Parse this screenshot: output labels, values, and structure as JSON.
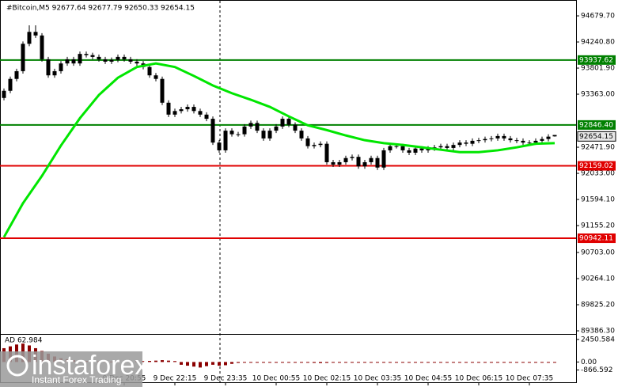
{
  "chart_data": {
    "type": "candlestick",
    "title": "#Bitcoin,M5  92677.64 92677.79 92650.33 92654.15",
    "candles": {
      "open": [
        93300,
        93420,
        93620,
        93750,
        94210,
        94410,
        94350,
        93950,
        93680,
        93750,
        93880,
        93950,
        93880,
        94040,
        94020,
        93990,
        93950,
        93910,
        93940,
        93990,
        93950,
        93910,
        93880,
        93820,
        93680,
        93620,
        93220,
        93020,
        93080,
        93110,
        93150,
        93080,
        93020,
        92950,
        92550,
        92420,
        92750,
        92690,
        92690,
        92820,
        92880,
        92750,
        92620,
        92750,
        92820,
        92950,
        92850,
        92750,
        92620,
        92490,
        92510,
        92530,
        92220,
        92180,
        92220,
        92290,
        92310,
        92150,
        92220,
        92290,
        92130,
        92420,
        92490,
        92490,
        92420,
        92380,
        92450,
        92420,
        92450,
        92470,
        92490,
        92460,
        92510,
        92550,
        92530,
        92580,
        92590,
        92610,
        92620,
        92660,
        92620,
        92590,
        92580,
        92550,
        92550,
        92580,
        92610,
        92677.64
      ],
      "high": [
        93460,
        93660,
        93790,
        94250,
        94520,
        94520,
        94390,
        93990,
        93790,
        93920,
        93990,
        93990,
        94080,
        94080,
        94060,
        94030,
        93990,
        93980,
        94030,
        94030,
        93990,
        93950,
        93920,
        93860,
        93720,
        93660,
        93260,
        93120,
        93150,
        93190,
        93190,
        93120,
        93060,
        92990,
        92590,
        92790,
        92790,
        92730,
        92860,
        92920,
        92920,
        92790,
        92790,
        92860,
        92990,
        92990,
        92890,
        92790,
        92660,
        92550,
        92570,
        92570,
        92260,
        92260,
        92330,
        92350,
        92350,
        92260,
        92330,
        92330,
        92460,
        92530,
        92530,
        92530,
        92460,
        92490,
        92490,
        92490,
        92510,
        92530,
        92530,
        92550,
        92590,
        92590,
        92620,
        92630,
        92650,
        92660,
        92700,
        92700,
        92660,
        92630,
        92620,
        92590,
        92620,
        92650,
        92690,
        92677.79
      ],
      "low": [
        93260,
        93380,
        93580,
        93710,
        94170,
        94310,
        93910,
        93640,
        93640,
        93710,
        93840,
        93840,
        93840,
        93980,
        93950,
        93910,
        93870,
        93870,
        93900,
        93910,
        93870,
        93840,
        93780,
        93640,
        93580,
        93180,
        92980,
        92980,
        93040,
        93070,
        93040,
        92980,
        92910,
        92510,
        92380,
        92380,
        92650,
        92650,
        92650,
        92780,
        92710,
        92580,
        92580,
        92710,
        92780,
        92810,
        92710,
        92580,
        92450,
        92450,
        92470,
        92180,
        92140,
        92140,
        92180,
        92250,
        92110,
        92110,
        92180,
        92090,
        92090,
        92380,
        92450,
        92380,
        92340,
        92340,
        92380,
        92380,
        92410,
        92430,
        92420,
        92420,
        92470,
        92490,
        92490,
        92540,
        92550,
        92570,
        92580,
        92580,
        92550,
        92540,
        92510,
        92510,
        92510,
        92540,
        92570,
        92650.33
      ],
      "close": [
        93420,
        93620,
        93750,
        94210,
        94410,
        94350,
        93950,
        93680,
        93750,
        93880,
        93950,
        93880,
        94040,
        94020,
        93990,
        93950,
        93910,
        93940,
        93990,
        93950,
        93910,
        93880,
        93820,
        93680,
        93620,
        93220,
        93020,
        93080,
        93110,
        93150,
        93080,
        93020,
        92950,
        92550,
        92420,
        92750,
        92690,
        92690,
        92820,
        92880,
        92750,
        92620,
        92750,
        92820,
        92950,
        92850,
        92750,
        92620,
        92490,
        92510,
        92530,
        92220,
        92180,
        92220,
        92290,
        92310,
        92150,
        92220,
        92290,
        92130,
        92420,
        92490,
        92490,
        92420,
        92380,
        92450,
        92420,
        92450,
        92470,
        92490,
        92460,
        92510,
        92550,
        92530,
        92580,
        92590,
        92610,
        92620,
        92660,
        92620,
        92590,
        92580,
        92550,
        92550,
        92580,
        92610,
        92650,
        92654.15
      ],
      "color": "#000000"
    },
    "ma": {
      "color": "#00e600",
      "x": [
        0,
        3,
        6,
        9,
        12,
        15,
        18,
        21,
        24,
        27,
        30,
        33,
        36,
        39,
        42,
        45,
        48,
        51,
        54,
        57,
        60,
        63,
        66,
        69,
        72,
        75,
        78,
        81,
        84,
        87
      ],
      "values": [
        90960,
        91530,
        91990,
        92500,
        92960,
        93350,
        93640,
        93820,
        93880,
        93820,
        93670,
        93510,
        93380,
        93270,
        93150,
        92990,
        92840,
        92760,
        92670,
        92590,
        92540,
        92510,
        92470,
        92430,
        92390,
        92390,
        92420,
        92470,
        92530,
        92540
      ]
    },
    "levels": [
      {
        "value": 93937.62,
        "color": "#008000"
      },
      {
        "value": 92846.4,
        "label": "92846.40",
        "color": "#008000"
      },
      {
        "value": 92159.02,
        "color": "#e00000"
      },
      {
        "value": 90942.11,
        "color": "#e00000"
      }
    ],
    "ylim": [
      89360,
      94893
    ],
    "yticks": [
      {
        "value": 94679.7,
        "label": "94679.70"
      },
      {
        "value": 94240.8,
        "label": "94240.80"
      },
      {
        "value": 93801.9,
        "label": "93801.90"
      },
      {
        "value": 93363,
        "label": "93363.00"
      },
      {
        "value": 92471.9,
        "label": "92471.90"
      },
      {
        "value": 92033,
        "label": "92033.00"
      },
      {
        "value": 91594.1,
        "label": "91594.10"
      },
      {
        "value": 91155.2,
        "label": "91155.20"
      },
      {
        "value": 90703,
        "label": "90703.00"
      },
      {
        "value": 90264.1,
        "label": "90264.10"
      },
      {
        "value": 89825.2,
        "label": "89825.20"
      },
      {
        "value": 89386.3,
        "label": "89386.30"
      }
    ],
    "xticks": [
      {
        "value": 19,
        "label": "9 Dec 20:55"
      },
      {
        "value": 27,
        "label": "9 Dec 22:15"
      },
      {
        "value": 35,
        "label": "9 Dec 23:35"
      },
      {
        "value": 43,
        "label": "10 Dec 00:55"
      },
      {
        "value": 51,
        "label": "10 Dec 02:15"
      },
      {
        "value": 59,
        "label": "10 Dec 03:35"
      },
      {
        "value": 67,
        "label": "10 Dec 04:55"
      },
      {
        "value": 75,
        "label": "10 Dec 06:15"
      },
      {
        "value": 83,
        "label": "10 Dec 07:35"
      }
    ],
    "indicator": {
      "title": "AD 62.984",
      "color": "#8b0000",
      "values": [
        1500,
        1700,
        1900,
        2000,
        1800,
        1500,
        1200,
        900,
        600,
        400,
        300,
        200,
        150,
        100,
        100,
        80,
        60,
        50,
        50,
        40,
        60,
        80,
        100,
        120,
        150,
        200,
        150,
        100,
        -300,
        -400,
        -500,
        -600,
        -450,
        -300,
        -400,
        -350,
        -200,
        -100,
        -80,
        -60,
        -50,
        -40,
        -60,
        -80,
        -50,
        -40,
        -30,
        -60,
        -80,
        -100,
        -120,
        -100,
        -80,
        -60,
        -40,
        -30,
        -20,
        -40,
        -60,
        -50,
        -30,
        -20,
        -10,
        -20,
        -30,
        -20,
        -10,
        -20,
        -30,
        -20,
        -10,
        -20,
        -30,
        -20,
        -10,
        -20,
        -30,
        -20,
        -10,
        -20,
        -30,
        -20,
        -10,
        -20,
        -30,
        -20,
        -10,
        -20
      ],
      "ylim": [
        -2113,
        2957
      ],
      "yticks": [
        2450.584,
        {
          "value": 0,
          "label": "0.00"
        },
        -866.592
      ]
    },
    "watermark": {
      "brand": "instaforex",
      "tagline": "Instant Forex Trading"
    }
  }
}
